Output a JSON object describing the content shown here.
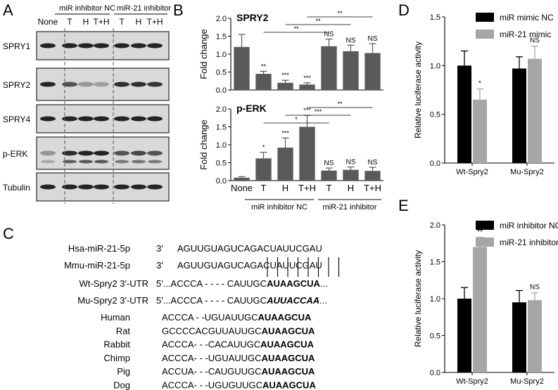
{
  "panel_letters": [
    "A",
    "B",
    "C",
    "D",
    "E"
  ],
  "panel_a": {
    "group_labels": [
      "miR inhibitor NC",
      "miR-21 inhibitor"
    ],
    "lane_labels": [
      "None",
      "T",
      "H",
      "T+H",
      "T",
      "H",
      "T+H"
    ],
    "row_labels": [
      "SPRY1",
      "SPRY2",
      "SPRY4",
      "p-ERK",
      "Tubulin"
    ],
    "band_intensity": [
      [
        0.95,
        0.95,
        0.95,
        0.95,
        0.95,
        0.95,
        0.95
      ],
      [
        0.95,
        0.7,
        0.35,
        0.3,
        0.9,
        0.9,
        0.85
      ],
      [
        0.95,
        0.95,
        0.95,
        0.95,
        0.95,
        0.95,
        0.95
      ],
      [
        0.35,
        0.9,
        0.95,
        0.95,
        0.7,
        0.75,
        0.7
      ],
      [
        0.95,
        0.95,
        0.95,
        0.95,
        0.95,
        0.95,
        0.95
      ]
    ],
    "colors": {
      "band": "#1a1a1a",
      "blot_bg": "#d9d9d9"
    }
  },
  "chart_data": [
    {
      "type": "bar",
      "panel": "B",
      "title": "SPRY2",
      "ylabel": "Fold change",
      "categories": [
        "None",
        "T",
        "H",
        "T+H",
        "T",
        "H",
        "T+H"
      ],
      "values": [
        1.2,
        0.45,
        0.2,
        0.15,
        1.22,
        1.08,
        1.03
      ],
      "errors": [
        0.35,
        0.07,
        0.07,
        0.05,
        0.2,
        0.17,
        0.26
      ],
      "ylim": [
        0,
        2.0
      ],
      "yticks": [
        0.0,
        0.5,
        1.0,
        1.5,
        2.0
      ],
      "sig_labels": [
        "",
        "**",
        "***",
        "***",
        "NS",
        "NS",
        "NS"
      ],
      "brackets": [
        {
          "from": 3,
          "to": 6,
          "label": "**"
        },
        {
          "from": 2,
          "to": 5,
          "label": "**"
        },
        {
          "from": 1,
          "to": 4,
          "label": "**"
        }
      ],
      "group_labels": [
        "miR inhibitor NC",
        "miR-21 inhibitor"
      ],
      "colors": {
        "bar": "#595959"
      }
    },
    {
      "type": "bar",
      "panel": "B",
      "title": "p-ERK",
      "ylabel": "Fold change",
      "categories": [
        "None",
        "T",
        "H",
        "T+H",
        "T",
        "H",
        "T+H"
      ],
      "values": [
        0.08,
        0.62,
        0.92,
        1.5,
        0.28,
        0.3,
        0.27
      ],
      "errors": [
        0.03,
        0.17,
        0.27,
        0.32,
        0.07,
        0.08,
        0.1
      ],
      "ylim": [
        0,
        2.0
      ],
      "yticks": [
        0.0,
        0.5,
        1.0,
        1.5,
        2.0
      ],
      "sig_labels": [
        "",
        "*",
        "***",
        "***",
        "NS",
        "NS",
        "NS"
      ],
      "brackets": [
        {
          "from": 3,
          "to": 6,
          "label": "**"
        },
        {
          "from": 2,
          "to": 5,
          "label": "***"
        },
        {
          "from": 1,
          "to": 4,
          "label": "*"
        }
      ],
      "group_labels": [
        "miR inhibitor NC",
        "miR-21 inhibitor"
      ],
      "colors": {
        "bar": "#595959"
      }
    },
    {
      "type": "bar",
      "panel": "D",
      "ylabel": "Relative luciferase activity",
      "categories": [
        "Wt-Spry2",
        "Mu-Spry2"
      ],
      "series": [
        {
          "name": "miR mimic NC",
          "values": [
            1.0,
            0.97
          ],
          "errors": [
            0.15,
            0.12
          ],
          "color": "#000000"
        },
        {
          "name": "miR-21 mimic",
          "values": [
            0.65,
            1.07
          ],
          "errors": [
            0.11,
            0.13
          ],
          "color": "#a6a6a6"
        }
      ],
      "sig_labels": [
        [
          "",
          ""
        ],
        [
          "*",
          "NS"
        ]
      ],
      "ylim": [
        0,
        1.5
      ],
      "yticks": [
        0.0,
        0.5,
        1.0,
        1.5
      ],
      "legend": "top"
    },
    {
      "type": "bar",
      "panel": "E",
      "ylabel": "Relative luciferase activity",
      "categories": [
        "Wt-Spry2",
        "Mu-Spry2"
      ],
      "series": [
        {
          "name": "miR inhibitor NC",
          "values": [
            1.0,
            0.95
          ],
          "errors": [
            0.15,
            0.16
          ],
          "color": "#000000"
        },
        {
          "name": "miR-21 inhibitor",
          "values": [
            1.7,
            0.98
          ],
          "errors": [
            0.13,
            0.1
          ],
          "color": "#a6a6a6"
        }
      ],
      "sig_labels": [
        [
          "",
          ""
        ],
        [
          "**",
          "NS"
        ]
      ],
      "ylim": [
        0,
        2.0
      ],
      "yticks": [
        0.0,
        0.5,
        1.0,
        1.5,
        2.0
      ],
      "legend": "top"
    }
  ],
  "panel_c": {
    "mirna": [
      {
        "label": "Hsa-miR-21-5p",
        "prime": "3'",
        "seq": "AGUUGUAGUCAGACUAUUCGAU"
      },
      {
        "label": "Mmu-miR-21-5p",
        "prime": "3'",
        "seq": "AGUUGUAGUCAGACUAUUCGAU"
      }
    ],
    "pairing_lines": 8,
    "utr": [
      {
        "label": "Wt-Spry2 3'-UTR",
        "prefix": "5'...ACCCA - - - - CAUUGC",
        "site": "AUAAGCUA",
        "suffix": "...",
        "italic": false
      },
      {
        "label": "Mu-Spry2 3'-UTR",
        "prefix": "5'...ACCCA - - - - CAUUGC",
        "site": "AUUACCAA",
        "suffix": "...",
        "italic": true
      }
    ],
    "species": [
      {
        "label": "Human",
        "prefix": "ACCCA - -UGUAUUGC",
        "site": "AUAAGCUA"
      },
      {
        "label": "Rat",
        "prefix": "GCCCCACGUUAUUGC",
        "site": "AUAAGCUA"
      },
      {
        "label": "Rabbit",
        "prefix": "ACCCA- - -CACAUUGC",
        "site": "AUAAGCUA"
      },
      {
        "label": "Chimp",
        "prefix": "ACCCA- - -UGUAUUGC",
        "site": "AUAAGCUA"
      },
      {
        "label": "Pig",
        "prefix": "ACCUA- - -CAUGUUGC",
        "site": "AUAAGCUA"
      },
      {
        "label": "Dog",
        "prefix": "ACCCA- - -UGUGUUGC",
        "site": "AUAAGCUA"
      }
    ]
  }
}
